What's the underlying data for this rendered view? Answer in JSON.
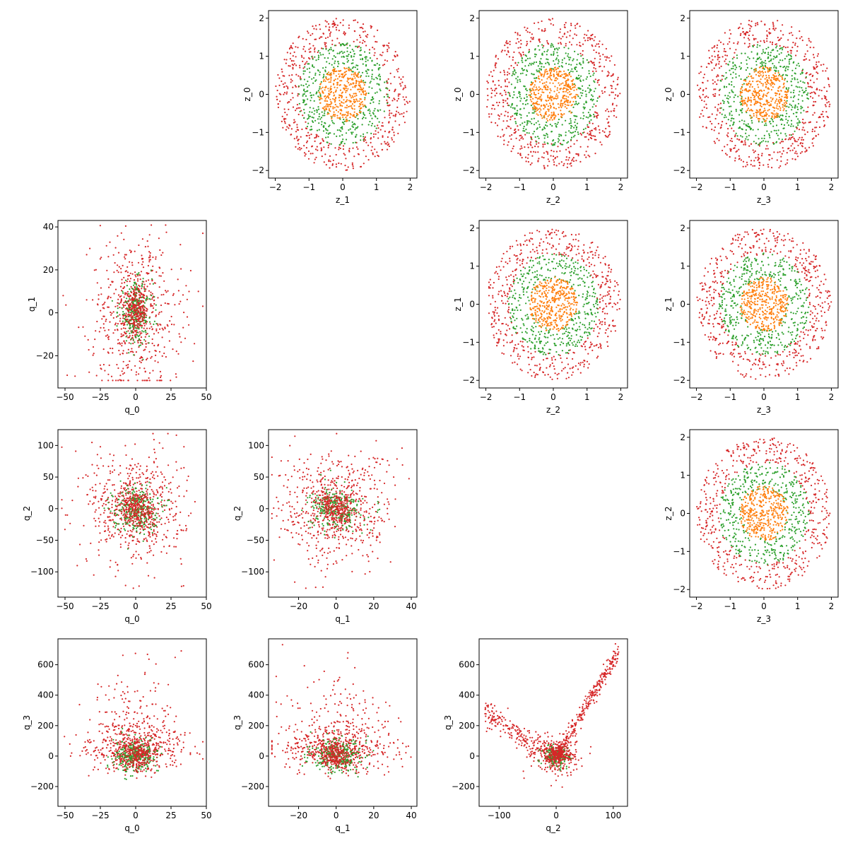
{
  "colors": {
    "orange": "#ff7f0e",
    "green": "#2ca02c",
    "red": "#d62728"
  },
  "chart_data": [
    {
      "type": "scatter",
      "xlabel": "z_1",
      "ylabel": "z_0",
      "kind": "rings",
      "xlim": [
        -2.2,
        2.2
      ],
      "ylim": [
        -2.2,
        2.2
      ],
      "xticks": [
        -2,
        -1,
        0,
        1,
        2
      ],
      "yticks": [
        -2,
        -1,
        0,
        1,
        2
      ],
      "xtick_labels": [
        "−2",
        "−1",
        "0",
        "1",
        "2"
      ],
      "ytick_labels": [
        "−2",
        "−1",
        "0",
        "1",
        "2"
      ],
      "series": [
        {
          "color": "#d62728",
          "radius_range": [
            1.3,
            2.0
          ]
        },
        {
          "color": "#2ca02c",
          "radius_range": [
            0.65,
            1.35
          ]
        },
        {
          "color": "#ff7f0e",
          "radius_range": [
            0,
            0.72
          ]
        }
      ]
    },
    {
      "type": "scatter",
      "xlabel": "z_2",
      "ylabel": "z_0",
      "kind": "rings",
      "xlim": [
        -2.2,
        2.2
      ],
      "ylim": [
        -2.2,
        2.2
      ],
      "xticks": [
        -2,
        -1,
        0,
        1,
        2
      ],
      "yticks": [
        -2,
        -1,
        0,
        1,
        2
      ],
      "xtick_labels": [
        "−2",
        "−1",
        "0",
        "1",
        "2"
      ],
      "ytick_labels": [
        "−2",
        "−1",
        "0",
        "1",
        "2"
      ],
      "series": [
        {
          "color": "#d62728",
          "radius_range": [
            1.3,
            2.0
          ]
        },
        {
          "color": "#2ca02c",
          "radius_range": [
            0.65,
            1.35
          ]
        },
        {
          "color": "#ff7f0e",
          "radius_range": [
            0,
            0.72
          ]
        }
      ]
    },
    {
      "type": "scatter",
      "xlabel": "z_3",
      "ylabel": "z_0",
      "kind": "rings",
      "xlim": [
        -2.2,
        2.2
      ],
      "ylim": [
        -2.2,
        2.2
      ],
      "xticks": [
        -2,
        -1,
        0,
        1,
        2
      ],
      "yticks": [
        -2,
        -1,
        0,
        1,
        2
      ],
      "xtick_labels": [
        "−2",
        "−1",
        "0",
        "1",
        "2"
      ],
      "ytick_labels": [
        "−2",
        "−1",
        "0",
        "1",
        "2"
      ],
      "series": [
        {
          "color": "#d62728",
          "radius_range": [
            1.3,
            2.0
          ]
        },
        {
          "color": "#2ca02c",
          "radius_range": [
            0.65,
            1.35
          ]
        },
        {
          "color": "#ff7f0e",
          "radius_range": [
            0,
            0.72
          ]
        }
      ]
    },
    {
      "type": "scatter",
      "xlabel": "q_0",
      "ylabel": "q_1",
      "kind": "cloud",
      "xlim": [
        -55,
        50
      ],
      "ylim": [
        -35,
        43
      ],
      "xticks": [
        -50,
        -25,
        0,
        25,
        50
      ],
      "yticks": [
        -20,
        0,
        20,
        40
      ],
      "xtick_labels": [
        "−50",
        "−25",
        "0",
        "25",
        "50"
      ],
      "ytick_labels": [
        "−20",
        "0",
        "20",
        "40"
      ],
      "series": [
        {
          "color": "#d62728",
          "spread": [
            16,
            17
          ]
        },
        {
          "color": "#2ca02c",
          "spread": [
            6,
            7
          ]
        },
        {
          "color": "#d62728",
          "spread": [
            4,
            5
          ]
        }
      ]
    },
    {
      "type": "scatter",
      "xlabel": "z_2",
      "ylabel": "z_1",
      "kind": "rings",
      "xlim": [
        -2.2,
        2.2
      ],
      "ylim": [
        -2.2,
        2.2
      ],
      "xticks": [
        -2,
        -1,
        0,
        1,
        2
      ],
      "yticks": [
        -2,
        -1,
        0,
        1,
        2
      ],
      "xtick_labels": [
        "−2",
        "−1",
        "0",
        "1",
        "2"
      ],
      "ytick_labels": [
        "−2",
        "−1",
        "0",
        "1",
        "2"
      ],
      "series": [
        {
          "color": "#d62728",
          "radius_range": [
            1.3,
            2.0
          ]
        },
        {
          "color": "#2ca02c",
          "radius_range": [
            0.65,
            1.35
          ]
        },
        {
          "color": "#ff7f0e",
          "radius_range": [
            0,
            0.72
          ]
        }
      ]
    },
    {
      "type": "scatter",
      "xlabel": "z_3",
      "ylabel": "z_1",
      "kind": "rings",
      "xlim": [
        -2.2,
        2.2
      ],
      "ylim": [
        -2.2,
        2.2
      ],
      "xticks": [
        -2,
        -1,
        0,
        1,
        2
      ],
      "yticks": [
        -2,
        -1,
        0,
        1,
        2
      ],
      "xtick_labels": [
        "−2",
        "−1",
        "0",
        "1",
        "2"
      ],
      "ytick_labels": [
        "−2",
        "−1",
        "0",
        "1",
        "2"
      ],
      "series": [
        {
          "color": "#d62728",
          "radius_range": [
            1.3,
            2.0
          ]
        },
        {
          "color": "#2ca02c",
          "radius_range": [
            0.65,
            1.35
          ]
        },
        {
          "color": "#ff7f0e",
          "radius_range": [
            0,
            0.72
          ]
        }
      ]
    },
    {
      "type": "scatter",
      "xlabel": "q_0",
      "ylabel": "q_2",
      "kind": "cloud",
      "xlim": [
        -55,
        50
      ],
      "ylim": [
        -140,
        125
      ],
      "xticks": [
        -50,
        -25,
        0,
        25,
        50
      ],
      "yticks": [
        -100,
        -50,
        0,
        50,
        100
      ],
      "xtick_labels": [
        "−50",
        "−25",
        "0",
        "25",
        "50"
      ],
      "ytick_labels": [
        "−100",
        "−50",
        "0",
        "50",
        "100"
      ],
      "series": [
        {
          "color": "#d62728",
          "spread": [
            17,
            45
          ]
        },
        {
          "color": "#2ca02c",
          "spread": [
            8,
            18
          ]
        },
        {
          "color": "#d62728",
          "spread": [
            6,
            14
          ]
        }
      ]
    },
    {
      "type": "scatter",
      "xlabel": "q_1",
      "ylabel": "q_2",
      "kind": "cloud",
      "xlim": [
        -36,
        43
      ],
      "ylim": [
        -140,
        125
      ],
      "xticks": [
        -20,
        0,
        20,
        40
      ],
      "yticks": [
        -100,
        -50,
        0,
        50,
        100
      ],
      "xtick_labels": [
        "−20",
        "0",
        "20",
        "40"
      ],
      "ytick_labels": [
        "−100",
        "−50",
        "0",
        "50",
        "100"
      ],
      "series": [
        {
          "color": "#d62728",
          "spread": [
            15,
            45
          ]
        },
        {
          "color": "#2ca02c",
          "spread": [
            7,
            16
          ]
        },
        {
          "color": "#d62728",
          "spread": [
            5,
            12
          ]
        }
      ]
    },
    {
      "type": "scatter",
      "xlabel": "z_3",
      "ylabel": "z_2",
      "kind": "rings",
      "xlim": [
        -2.2,
        2.2
      ],
      "ylim": [
        -2.2,
        2.2
      ],
      "xticks": [
        -2,
        -1,
        0,
        1,
        2
      ],
      "yticks": [
        -2,
        -1,
        0,
        1,
        2
      ],
      "xtick_labels": [
        "−2",
        "−1",
        "0",
        "1",
        "2"
      ],
      "ytick_labels": [
        "−2",
        "−1",
        "0",
        "1",
        "2"
      ],
      "series": [
        {
          "color": "#d62728",
          "radius_range": [
            1.3,
            2.0
          ]
        },
        {
          "color": "#2ca02c",
          "radius_range": [
            0.65,
            1.35
          ]
        },
        {
          "color": "#ff7f0e",
          "radius_range": [
            0,
            0.72
          ]
        }
      ]
    },
    {
      "type": "scatter",
      "xlabel": "q_0",
      "ylabel": "q_3",
      "kind": "cloud",
      "xlim": [
        -55,
        50
      ],
      "ylim": [
        -330,
        770
      ],
      "xticks": [
        -50,
        -25,
        0,
        25,
        50
      ],
      "yticks": [
        -200,
        0,
        200,
        400,
        600
      ],
      "xtick_labels": [
        "−50",
        "−25",
        "0",
        "25",
        "50"
      ],
      "ytick_labels": [
        "−200",
        "0",
        "200",
        "400",
        "600"
      ],
      "series": [
        {
          "color": "#d62728",
          "spread": [
            17,
            170
          ]
        },
        {
          "color": "#2ca02c",
          "spread": [
            8,
            55
          ]
        },
        {
          "color": "#d62728",
          "spread": [
            6,
            50
          ]
        }
      ]
    },
    {
      "type": "scatter",
      "xlabel": "q_1",
      "ylabel": "q_3",
      "kind": "cloud",
      "xlim": [
        -36,
        43
      ],
      "ylim": [
        -330,
        770
      ],
      "xticks": [
        -20,
        0,
        20,
        40
      ],
      "yticks": [
        -200,
        0,
        200,
        400,
        600
      ],
      "xtick_labels": [
        "−20",
        "0",
        "20",
        "40"
      ],
      "ytick_labels": [
        "−200",
        "0",
        "200",
        "400",
        "600"
      ],
      "series": [
        {
          "color": "#d62728",
          "spread": [
            15,
            170
          ]
        },
        {
          "color": "#2ca02c",
          "spread": [
            7,
            55
          ]
        },
        {
          "color": "#d62728",
          "spread": [
            5,
            40
          ]
        }
      ]
    },
    {
      "type": "scatter",
      "xlabel": "q_2",
      "ylabel": "q_3",
      "kind": "vshape",
      "xlim": [
        -135,
        125
      ],
      "ylim": [
        -330,
        770
      ],
      "xticks": [
        -100,
        0,
        100
      ],
      "yticks": [
        -200,
        0,
        200,
        400,
        600
      ],
      "xtick_labels": [
        "−100",
        "0",
        "100"
      ],
      "ytick_labels": [
        "−200",
        "0",
        "200",
        "400",
        "600"
      ],
      "series": [
        {
          "color": "#d62728",
          "spread": [
            30,
            80
          ]
        },
        {
          "color": "#2ca02c",
          "spread": [
            12,
            40
          ]
        },
        {
          "color": "#d62728",
          "spread": [
            10,
            30
          ]
        }
      ]
    }
  ]
}
